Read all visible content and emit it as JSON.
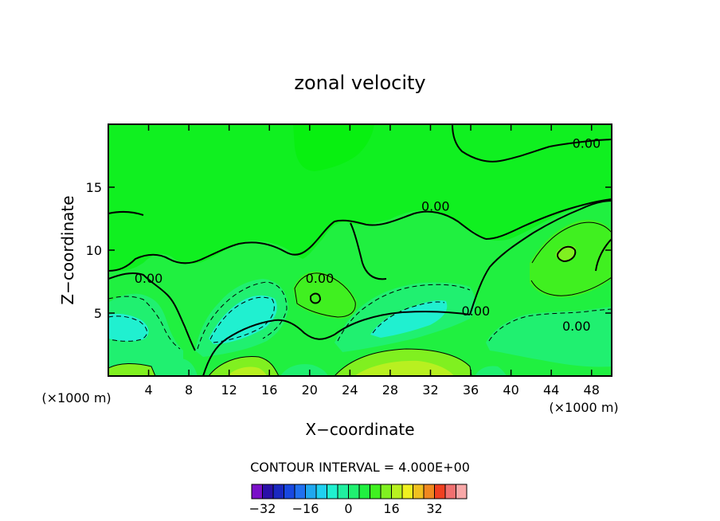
{
  "chart_data": {
    "type": "contour",
    "title": "zonal velocity",
    "xlabel": "X−coordinate",
    "ylabel": "Z−coordinate",
    "x_unit": "(×1000 m)",
    "x_unit_right": "(×1000 m)",
    "xlim": [
      0,
      50
    ],
    "ylim": [
      0,
      20
    ],
    "x_ticks": [
      4,
      8,
      12,
      16,
      20,
      24,
      28,
      32,
      36,
      40,
      44,
      48
    ],
    "y_ticks": [
      5,
      10,
      15
    ],
    "contour_interval_text": "CONTOUR INTERVAL = 4.000E+00",
    "contour_labels": [
      {
        "text": "0.00",
        "x": 47.5,
        "y": 18.5
      },
      {
        "text": "0.00",
        "x": 32.5,
        "y": 13.5
      },
      {
        "text": "0.00",
        "x": 4.0,
        "y": 7.8
      },
      {
        "text": "0.00",
        "x": 21.0,
        "y": 7.8
      },
      {
        "text": "0.00",
        "x": 36.5,
        "y": 5.2
      },
      {
        "text": "0.00",
        "x": 46.5,
        "y": 4.0
      }
    ],
    "colorbar": {
      "levels": [
        -36,
        -32,
        -28,
        -24,
        -20,
        -16,
        -12,
        -8,
        -4,
        0,
        4,
        8,
        12,
        16,
        20,
        24,
        28,
        32,
        36,
        40
      ],
      "colors": [
        "#7a10c8",
        "#2a10a8",
        "#1a28c0",
        "#1848e0",
        "#2070f0",
        "#20a8f0",
        "#20d0f0",
        "#20f0d0",
        "#20f0a0",
        "#20f070",
        "#20f040",
        "#40f020",
        "#80f020",
        "#b8f020",
        "#f0f020",
        "#f0c020",
        "#f08820",
        "#f04020",
        "#f07070",
        "#f8a8a8"
      ],
      "tick_labels": [
        "−32",
        "−16",
        "0",
        "16",
        "32"
      ],
      "tick_values": [
        -32,
        -16,
        0,
        16,
        32
      ]
    }
  }
}
